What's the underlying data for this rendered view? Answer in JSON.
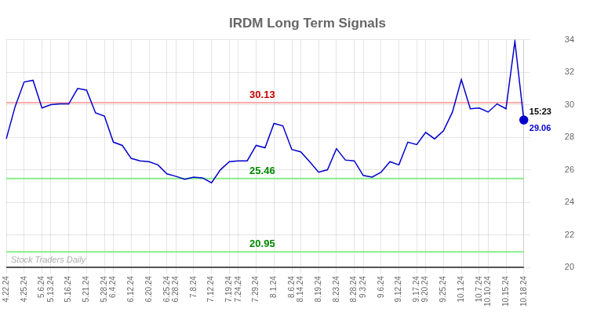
{
  "chart_data": {
    "type": "line",
    "title": "IRDM Long Term Signals",
    "categories": [
      "4.22.24",
      null,
      "4.25.24",
      null,
      "5.6.24",
      "5.13.24",
      null,
      "5.16.24",
      null,
      "5.21.24",
      null,
      "5.28.24",
      "6.4.24",
      null,
      "6.12.24",
      null,
      "6.20.24",
      null,
      "6.25.24",
      "6.28.24",
      null,
      "7.8.24",
      null,
      "7.12.24",
      null,
      "7.19.24",
      "7.24.24",
      null,
      "7.29.24",
      null,
      "8.1.24",
      null,
      "8.6.24",
      "8.14.24",
      null,
      "8.19.24",
      null,
      "8.23.24",
      null,
      "8.28.24",
      "9.3.24",
      null,
      "9.6.24",
      null,
      "9.12.24",
      null,
      "9.17.24",
      "9.20.24",
      null,
      "9.25.24",
      null,
      "10.1.24",
      null,
      "10.7.24",
      "10.10.24",
      null,
      "10.15.24",
      null,
      "10.18.24"
    ],
    "series": [
      {
        "color": "#0000cc",
        "marker": "none",
        "line_style": "solid",
        "values": [
          27.9,
          29.9,
          31.4,
          31.5,
          29.8,
          30.0,
          30.05,
          30.05,
          31.0,
          30.9,
          29.5,
          29.3,
          27.7,
          27.5,
          26.7,
          26.55,
          26.5,
          26.3,
          25.75,
          25.6,
          25.42,
          25.55,
          25.5,
          25.2,
          26.0,
          26.5,
          26.55,
          26.55,
          27.5,
          27.35,
          28.85,
          28.7,
          27.25,
          27.1,
          26.5,
          25.85,
          26.0,
          27.3,
          26.6,
          26.55,
          25.65,
          25.55,
          25.85,
          26.5,
          26.3,
          27.7,
          27.55,
          28.3,
          27.9,
          28.4,
          29.55,
          31.55,
          29.75,
          29.8,
          29.55,
          30.05,
          29.75,
          33.9,
          29.06
        ]
      },
      {
        "color": "#0000cc",
        "marker": "circle",
        "line_style": "none",
        "values": [
          null,
          null,
          null,
          null,
          null,
          null,
          null,
          null,
          null,
          null,
          null,
          null,
          null,
          null,
          null,
          null,
          null,
          null,
          null,
          null,
          null,
          null,
          null,
          null,
          null,
          null,
          null,
          null,
          null,
          null,
          null,
          null,
          null,
          null,
          null,
          null,
          null,
          null,
          null,
          null,
          null,
          null,
          null,
          null,
          null,
          null,
          null,
          null,
          null,
          null,
          null,
          null,
          null,
          null,
          null,
          null,
          null,
          null,
          29.06
        ]
      }
    ],
    "hlines": [
      {
        "value": 30.13,
        "color": "#ffaaaa",
        "label": "30.13",
        "label_color": "#cc0000"
      },
      {
        "value": 25.46,
        "color": "#88ee88",
        "label": "25.46",
        "label_color": "#008800"
      },
      {
        "value": 20.95,
        "color": "#88ee88",
        "label": "20.95",
        "label_color": "#008800"
      },
      {
        "value": 20.0,
        "color": "#555555"
      }
    ],
    "annotations": [
      {
        "text": "15:23",
        "color": "#000000"
      },
      {
        "text": "29.06",
        "color": "#0000cc"
      }
    ],
    "watermark": "Stock Traders Daily",
    "ylim": [
      20,
      34
    ],
    "yticks": [
      20,
      22,
      24,
      26,
      28,
      30,
      32,
      34
    ],
    "grid": true,
    "legend": false
  }
}
